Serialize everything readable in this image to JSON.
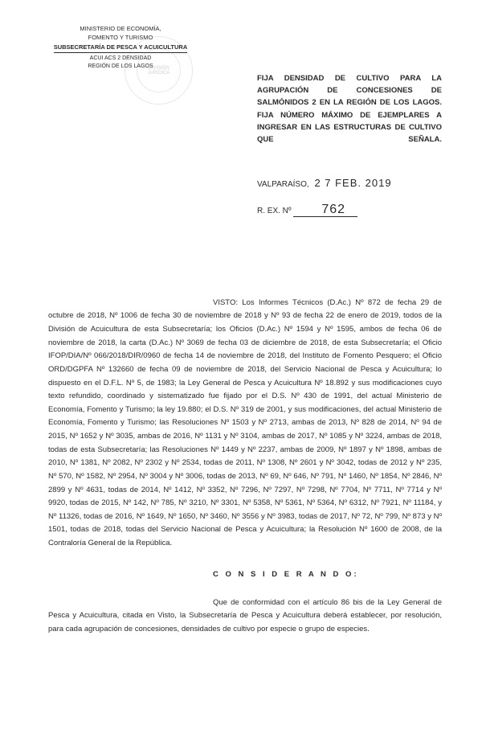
{
  "letterhead": {
    "line1": "MINISTERIO DE ECONOMÍA,",
    "line2": "FOMENTO Y TURISMO",
    "line3": "SUBSECRETARÍA DE PESCA Y ACUICULTURA",
    "line4": "ACUI ACS 2 DENSIDAD",
    "line5": "REGIÓN DE LOS LAGOS"
  },
  "stamp": {
    "text": "DIVISIÓN JURÍDICA"
  },
  "title": "FIJA DENSIDAD DE CULTIVO PARA LA AGRUPACIÓN DE CONCESIONES DE SALMÓNIDOS 2 EN LA REGIÓN DE LOS LAGOS. FIJA NÚMERO MÁXIMO DE EJEMPLARES A INGRESAR EN LAS ESTRUCTURAS DE CULTIVO QUE SEÑALA.",
  "location": {
    "city": "VALPARAÍSO,",
    "date": "2 7 FEB. 2019"
  },
  "rex": {
    "label": "R. EX. Nº",
    "number": "762"
  },
  "visto": {
    "label": "VISTO:",
    "text": " Los Informes Técnicos (D.Ac.) Nº 872 de fecha 29 de octubre de 2018, Nº 1006 de fecha 30 de noviembre de 2018 y Nº 93 de fecha 22 de enero de 2019, todos de la División de Acuicultura de esta Subsecretaría; los Oficios (D.Ac.) Nº 1594 y Nº 1595, ambos de fecha 06 de noviembre de 2018, la carta (D.Ac.) Nº 3069 de fecha 03 de diciembre de 2018, de esta Subsecretaría; el Oficio IFOP/DIA/Nº 066/2018/DIR/0960 de fecha 14 de noviembre de 2018, del Instituto de Fomento Pesquero; el Oficio ORD/DGPFA Nº 132660 de fecha 09 de noviembre de 2018, del Servicio Nacional de Pesca y Acuicultura; lo dispuesto en el D.F.L. Nº 5, de 1983; la Ley General de Pesca y Acuicultura Nº 18.892 y sus modificaciones cuyo texto refundido, coordinado y sistematizado fue fijado por el D.S. Nº 430 de 1991, del actual Ministerio de Economía, Fomento y Turismo; la ley 19.880; el D.S. Nº 319 de 2001, y sus modificaciones, del actual Ministerio de Economía, Fomento y Turismo; las Resoluciones Nº 1503 y Nº 2713, ambas de 2013, Nº 828 de 2014, Nº 94 de 2015, Nº 1652 y Nº 3035, ambas de 2016, Nº 1131 y Nº 3104, ambas de 2017, Nº 1085 y Nº 3224, ambas de 2018, todas de esta Subsecretaría; las Resoluciones Nº 1449 y Nº 2237, ambas de 2009, Nº 1897 y Nº 1898, ambas de 2010, Nº 1381, Nº 2082, Nº 2302 y Nº 2534, todas de 2011, Nº 1308, Nº 2601 y Nº 3042, todas de 2012 y Nº 235, Nº 570, Nº 1582, Nº 2954, Nº 3004 y Nº 3006, todas de 2013, Nº 69, Nº 646, Nº 791, Nº 1460, Nº 1854, Nº 2846, Nº 2899 y Nº 4631, todas de 2014, Nº 1412, Nº 3352, Nº 7296, Nº 7297, Nº 7298, Nº 7704, Nº 7711, Nº 7714 y Nº 9920, todas de 2015, Nº 142, Nº 785, Nº 3210, Nº 3301, Nº 5358, Nº 5361, Nº 5364, Nº 6312, Nº 7921, Nº 11184, y Nº 11326, todas de 2016, Nº 1649, Nº 1650, Nº 3460, Nº 3556 y Nº 3983, todas de 2017, Nº 72, Nº 799, Nº 873 y Nº 1501, todas de 2018, todas del Servicio Nacional de Pesca y Acuicultura; la Resolución Nº 1600 de 2008, de la Contraloría General de la República."
  },
  "considerando": {
    "header": "C O N S I D E R A N D O:",
    "text": "Que de conformidad con el artículo 86 bis de la Ley General de Pesca y Acuicultura, citada en Visto, la Subsecretaría de Pesca y Acuicultura deberá establecer, por resolución, para cada agrupación de concesiones, densidades de cultivo por especie o grupo de especies."
  }
}
